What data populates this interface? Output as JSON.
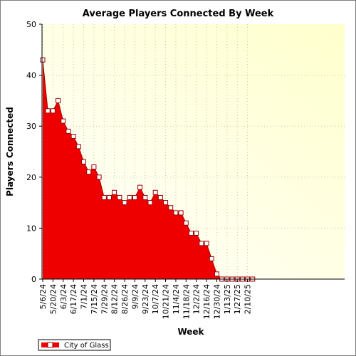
{
  "chart_data": {
    "type": "area",
    "title": "Average Players Connected By Week",
    "xlabel": "Week",
    "ylabel": "Players Connected",
    "ylim": [
      0,
      50
    ],
    "yticks": [
      0,
      10,
      20,
      30,
      40,
      50
    ],
    "x_tick_labels": [
      "5/6/24",
      "5/20/24",
      "6/3/24",
      "6/17/24",
      "7/1/24",
      "7/15/24",
      "7/29/24",
      "8/12/24",
      "8/26/24",
      "9/9/24",
      "9/23/24",
      "10/7/24",
      "10/21/24",
      "11/4/24",
      "11/18/24",
      "12/2/24",
      "12/16/24",
      "12/30/24",
      "1/13/25",
      "1/27/25",
      "2/10/25"
    ],
    "x": [
      "5/6/24",
      "5/13/24",
      "5/20/24",
      "5/27/24",
      "6/3/24",
      "6/10/24",
      "6/17/24",
      "6/24/24",
      "7/1/24",
      "7/8/24",
      "7/15/24",
      "7/22/24",
      "7/29/24",
      "8/5/24",
      "8/12/24",
      "8/19/24",
      "8/26/24",
      "9/2/24",
      "9/9/24",
      "9/16/24",
      "9/23/24",
      "9/30/24",
      "10/7/24",
      "10/14/24",
      "10/21/24",
      "10/28/24",
      "11/4/24",
      "11/11/24",
      "11/18/24",
      "11/25/24",
      "12/2/24",
      "12/9/24",
      "12/16/24",
      "12/23/24",
      "12/30/24",
      "1/6/25",
      "1/13/25",
      "1/20/25",
      "1/27/25",
      "2/3/25",
      "2/10/25",
      "2/17/25"
    ],
    "series": [
      {
        "name": "City of Glass",
        "color": "#ee0000",
        "values": [
          43,
          33,
          33,
          35,
          31,
          29,
          28,
          26,
          23,
          21,
          22,
          20,
          16,
          16,
          17,
          16,
          15,
          16,
          16,
          18,
          16,
          15,
          17,
          16,
          15,
          14,
          13,
          13,
          11,
          9,
          9,
          7,
          7,
          4,
          1,
          0,
          0,
          0,
          0,
          0,
          0,
          0
        ]
      }
    ],
    "grid": true,
    "legend_position": "bottom-left",
    "colors": {
      "plot_background_start": "#ffffff",
      "plot_background_end": "#ffffcc",
      "fill": "#ee0000",
      "marker_fill": "#ffffff",
      "marker_stroke": "#990000"
    }
  }
}
